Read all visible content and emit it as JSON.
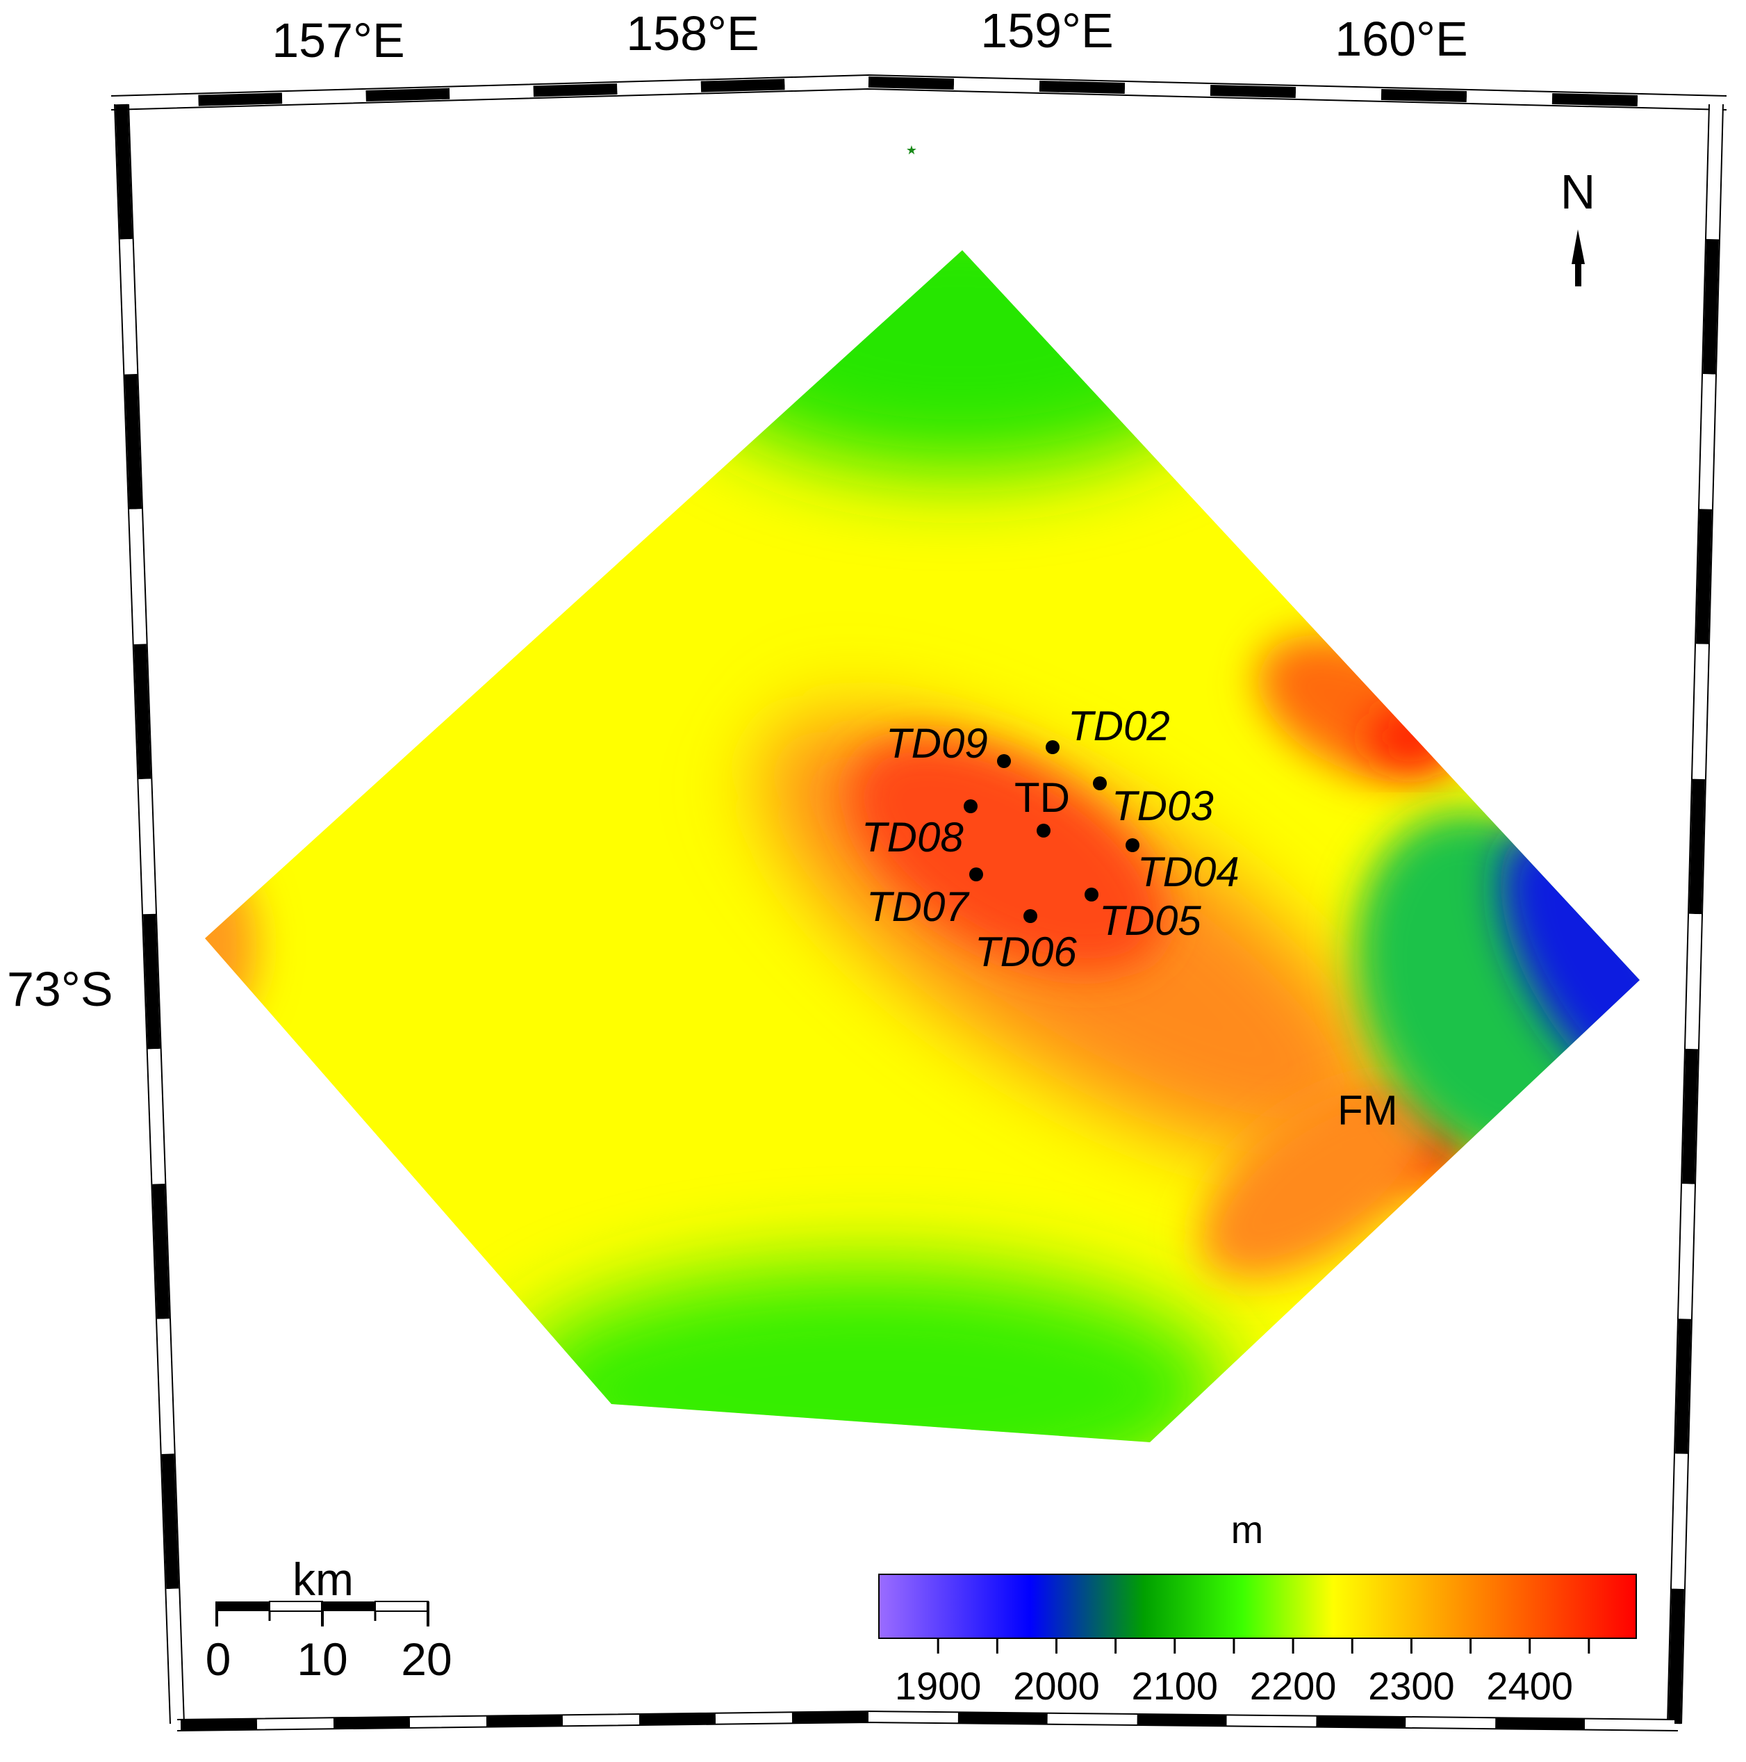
{
  "graticule": {
    "lon_labels": [
      "157°E",
      "158°E",
      "159°E",
      "160°E"
    ],
    "lat_labels": [
      "73°S"
    ]
  },
  "north_arrow": {
    "label": "N"
  },
  "stations": [
    {
      "id": "TD09",
      "italic": true
    },
    {
      "id": "TD02",
      "italic": true
    },
    {
      "id": "TD03",
      "italic": true
    },
    {
      "id": "TD",
      "italic": false
    },
    {
      "id": "TD08",
      "italic": true
    },
    {
      "id": "TD04",
      "italic": true
    },
    {
      "id": "TD07",
      "italic": true
    },
    {
      "id": "TD05",
      "italic": true
    },
    {
      "id": "TD06",
      "italic": true
    }
  ],
  "features": {
    "fm_label": "FM"
  },
  "scale_bar": {
    "unit": "km",
    "ticks": [
      "0",
      "10",
      "20"
    ]
  },
  "colorbar": {
    "unit": "m",
    "range": [
      1850,
      2490
    ],
    "ticks": [
      "1900",
      "2000",
      "2100",
      "2200",
      "2300",
      "2400"
    ],
    "colors": [
      "#9b6cff",
      "#0000ff",
      "#00a000",
      "#3cff00",
      "#ffff00",
      "#ff8c00",
      "#ff0000"
    ]
  },
  "elevation_colors": {
    "low_blue": "#0a1fe0",
    "green": "#27e600",
    "yellow": "#ffff00",
    "orange": "#ff9a1a",
    "red": "#ff3a10"
  }
}
